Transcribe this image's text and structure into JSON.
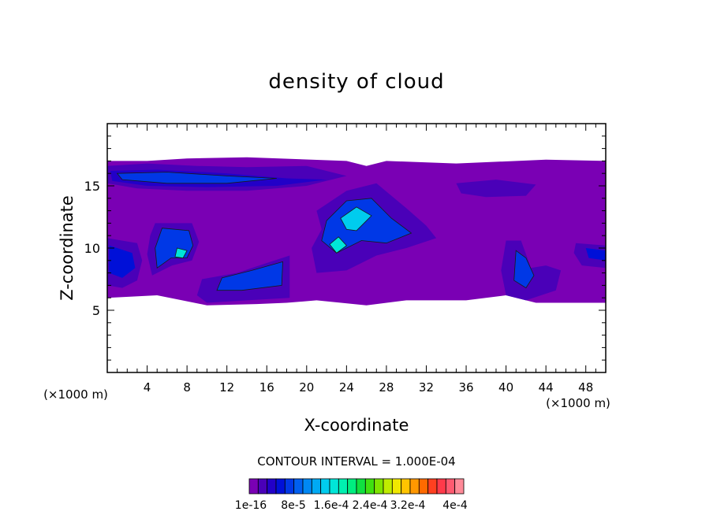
{
  "chart_data": {
    "type": "heatmap",
    "title": "density of cloud",
    "xlabel": "X-coordinate",
    "ylabel": "Z-coordinate",
    "x_unit": "(×1000 m)",
    "z_unit": "(×1000 m)",
    "xlim": [
      0,
      50
    ],
    "ylim": [
      0,
      20
    ],
    "x_ticks": [
      "4",
      "8",
      "12",
      "16",
      "20",
      "24",
      "28",
      "32",
      "36",
      "40",
      "44",
      "48"
    ],
    "y_ticks": [
      "5",
      "10",
      "15"
    ],
    "contour_interval_text": "CONTOUR INTERVAL = 1.000E-04",
    "colorbar_labels": [
      "1e-16",
      "8e-5",
      "1.6e-4",
      "2.4e-4",
      "3.2e-4",
      "4e-4"
    ],
    "colorbar_colors": [
      "#7a00b4",
      "#4a00b8",
      "#2200c8",
      "#0010d8",
      "#0038e6",
      "#0060f0",
      "#0088f4",
      "#00aaf4",
      "#00ccee",
      "#00e6d8",
      "#00f0b0",
      "#00ee80",
      "#10e040",
      "#40e010",
      "#80e400",
      "#c0ec00",
      "#f0e800",
      "#ffc400",
      "#ff9800",
      "#ff6a00",
      "#ff4020",
      "#ff3a4a",
      "#ff5a70",
      "#ff8a98"
    ],
    "cloud_regions": [
      {
        "level": 0,
        "points": [
          [
            0,
            17
          ],
          [
            4,
            17
          ],
          [
            8,
            17.2
          ],
          [
            14,
            17.3
          ],
          [
            24,
            17
          ],
          [
            26,
            16.6
          ],
          [
            28,
            17
          ],
          [
            35,
            16.8
          ],
          [
            44,
            17.1
          ],
          [
            50,
            17
          ],
          [
            50,
            5.6
          ],
          [
            43,
            5.6
          ],
          [
            40,
            6.2
          ],
          [
            36,
            5.8
          ],
          [
            30,
            5.8
          ],
          [
            26,
            5.4
          ],
          [
            21,
            5.8
          ],
          [
            18,
            5.6
          ],
          [
            15,
            5.5
          ],
          [
            10,
            5.4
          ],
          [
            5,
            6.2
          ],
          [
            0,
            6
          ]
        ]
      },
      {
        "level": 1,
        "points": [
          [
            0,
            16.6
          ],
          [
            4,
            16.8
          ],
          [
            9,
            16.6
          ],
          [
            14,
            16.5
          ],
          [
            20,
            16.6
          ],
          [
            24,
            15.8
          ],
          [
            20,
            15
          ],
          [
            14,
            14.6
          ],
          [
            8,
            14.6
          ],
          [
            3,
            14.8
          ],
          [
            0,
            15.2
          ]
        ]
      },
      {
        "level": 2,
        "points": [
          [
            0.3,
            16.2
          ],
          [
            5,
            16.3
          ],
          [
            12,
            16
          ],
          [
            18,
            15.6
          ],
          [
            22,
            15.5
          ],
          [
            17,
            15
          ],
          [
            10,
            14.9
          ],
          [
            4,
            15
          ],
          [
            0.5,
            15.4
          ]
        ]
      },
      {
        "level": 4,
        "points": [
          [
            1,
            16
          ],
          [
            6,
            16.1
          ],
          [
            12,
            15.8
          ],
          [
            17,
            15.6
          ],
          [
            12,
            15.2
          ],
          [
            6,
            15.2
          ],
          [
            1.5,
            15.5
          ]
        ]
      },
      {
        "level": 0,
        "points": [
          [
            33,
            15.4
          ],
          [
            38,
            15.8
          ],
          [
            44,
            15.5
          ],
          [
            49,
            15.2
          ],
          [
            48,
            13.8
          ],
          [
            44,
            13.4
          ],
          [
            40,
            13.6
          ],
          [
            35,
            13.9
          ]
        ]
      },
      {
        "level": 1,
        "points": [
          [
            35,
            15.2
          ],
          [
            39,
            15.5
          ],
          [
            43,
            15.1
          ],
          [
            42,
            14.2
          ],
          [
            38,
            14.1
          ],
          [
            35.5,
            14.4
          ]
        ]
      },
      {
        "level": 1,
        "points": [
          [
            21,
            13
          ],
          [
            24,
            14.6
          ],
          [
            27,
            15.2
          ],
          [
            30,
            13.2
          ],
          [
            32,
            11.8
          ],
          [
            33,
            10.8
          ],
          [
            30,
            10
          ],
          [
            27,
            9.4
          ],
          [
            24,
            8.2
          ],
          [
            21,
            8
          ],
          [
            20.5,
            10
          ],
          [
            21.5,
            11.5
          ]
        ]
      },
      {
        "level": 4,
        "points": [
          [
            22,
            12.2
          ],
          [
            24,
            13.8
          ],
          [
            26.5,
            14
          ],
          [
            28.5,
            12.4
          ],
          [
            30.5,
            11.2
          ],
          [
            28,
            10.4
          ],
          [
            25.5,
            10.6
          ],
          [
            23,
            9.6
          ],
          [
            21.5,
            10.6
          ]
        ]
      },
      {
        "level": 8,
        "points": [
          [
            23.4,
            12.4
          ],
          [
            25,
            13.3
          ],
          [
            26.5,
            12.6
          ],
          [
            25,
            11.4
          ],
          [
            24,
            11.5
          ]
        ]
      },
      {
        "level": 9,
        "points": [
          [
            22.3,
            10.3
          ],
          [
            23.2,
            10.9
          ],
          [
            24,
            10.2
          ],
          [
            23,
            9.6
          ]
        ]
      },
      {
        "level": 1,
        "points": [
          [
            0,
            10.8
          ],
          [
            3,
            10.4
          ],
          [
            3.5,
            9
          ],
          [
            3,
            7.4
          ],
          [
            1.5,
            6.8
          ],
          [
            0,
            7
          ]
        ]
      },
      {
        "level": 3,
        "points": [
          [
            0.2,
            10.2
          ],
          [
            2.5,
            9.6
          ],
          [
            2.8,
            8.4
          ],
          [
            1.5,
            7.6
          ],
          [
            0.2,
            8
          ]
        ]
      },
      {
        "level": 1,
        "points": [
          [
            4.8,
            12
          ],
          [
            8.5,
            12
          ],
          [
            9.2,
            10.5
          ],
          [
            8.5,
            9
          ],
          [
            6.5,
            8.6
          ],
          [
            4.5,
            7.8
          ],
          [
            4,
            9.5
          ],
          [
            4.3,
            11
          ]
        ]
      },
      {
        "level": 4,
        "points": [
          [
            5.5,
            11.6
          ],
          [
            8.2,
            11.4
          ],
          [
            8.6,
            10.2
          ],
          [
            8,
            9.2
          ],
          [
            6.4,
            9.2
          ],
          [
            5,
            8.4
          ],
          [
            4.8,
            10
          ]
        ]
      },
      {
        "level": 9,
        "points": [
          [
            7,
            10
          ],
          [
            8,
            9.8
          ],
          [
            7.6,
            9.2
          ],
          [
            6.8,
            9.3
          ]
        ]
      },
      {
        "level": 1,
        "points": [
          [
            9.5,
            7.5
          ],
          [
            13,
            8
          ],
          [
            16,
            8.8
          ],
          [
            18.3,
            9.4
          ],
          [
            18.3,
            6
          ],
          [
            14,
            5.8
          ],
          [
            10,
            5.6
          ],
          [
            9,
            6.2
          ]
        ]
      },
      {
        "level": 4,
        "points": [
          [
            11.5,
            7.6
          ],
          [
            14.5,
            8.2
          ],
          [
            17.6,
            8.9
          ],
          [
            17.5,
            7
          ],
          [
            13.5,
            6.6
          ],
          [
            11,
            6.6
          ]
        ]
      },
      {
        "level": 1,
        "points": [
          [
            40,
            10.6
          ],
          [
            41.5,
            10.6
          ],
          [
            42.5,
            8.4
          ],
          [
            44,
            8.6
          ],
          [
            45.5,
            8.2
          ],
          [
            45,
            6.6
          ],
          [
            42,
            5.8
          ],
          [
            40,
            6.2
          ],
          [
            39.5,
            8.2
          ]
        ]
      },
      {
        "level": 4,
        "points": [
          [
            41,
            9.8
          ],
          [
            42,
            9.2
          ],
          [
            42.8,
            7.8
          ],
          [
            42,
            6.8
          ],
          [
            40.8,
            7.4
          ]
        ]
      },
      {
        "level": 1,
        "points": [
          [
            47,
            10.4
          ],
          [
            50,
            10.2
          ],
          [
            50,
            8.4
          ],
          [
            47.6,
            8.6
          ],
          [
            46.8,
            9.6
          ]
        ]
      },
      {
        "level": 3,
        "points": [
          [
            48,
            10
          ],
          [
            50,
            9.8
          ],
          [
            50,
            9
          ],
          [
            48.3,
            9.2
          ]
        ]
      }
    ]
  }
}
